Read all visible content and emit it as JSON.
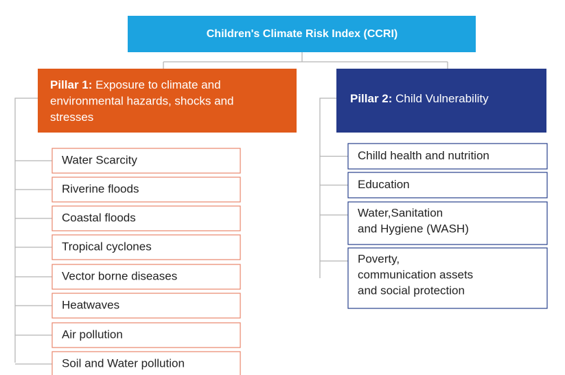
{
  "root": {
    "title": "Children's Climate Risk Index (CCRI)"
  },
  "pillars": [
    {
      "bold": "Pillar 1:",
      "lines": [
        "Exposure to climate and",
        "environmental hazards, shocks and",
        "stresses"
      ],
      "items": [
        [
          "Water Scarcity"
        ],
        [
          "Riverine floods"
        ],
        [
          "Coastal floods"
        ],
        [
          "Tropical cyclones"
        ],
        [
          "Vector borne diseases"
        ],
        [
          "Heatwaves"
        ],
        [
          "Air pollution"
        ],
        [
          "Soil and Water pollution"
        ]
      ]
    },
    {
      "bold": "Pillar 2:",
      "lines": [
        "Child Vulnerability"
      ],
      "items": [
        [
          "Chilld health and nutrition"
        ],
        [
          "Education"
        ],
        [
          "Water,Sanitation",
          "and Hygiene (WASH)"
        ],
        [
          "Poverty,",
          "communication assets",
          "and social protection"
        ]
      ]
    }
  ]
}
